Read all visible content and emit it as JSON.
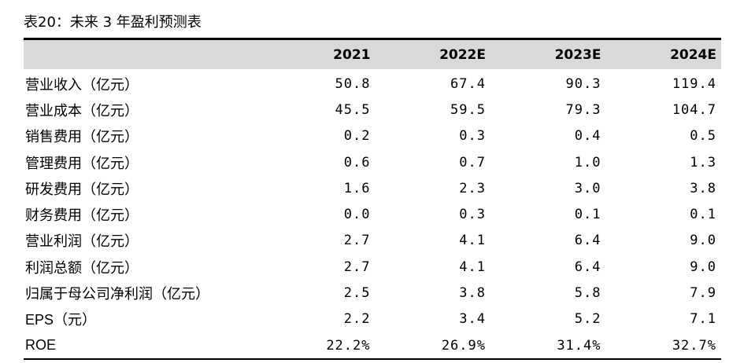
{
  "title": "表20：未来 3 年盈利预测表",
  "header": {
    "label": "",
    "years": [
      "2021",
      "2022E",
      "2023E",
      "2024E"
    ]
  },
  "rows": [
    {
      "label": "营业收入（亿元）",
      "values": [
        "50.8",
        "67.4",
        "90.3",
        "119.4"
      ]
    },
    {
      "label": "营业成本（亿元）",
      "values": [
        "45.5",
        "59.5",
        "79.3",
        "104.7"
      ]
    },
    {
      "label": "销售费用（亿元）",
      "values": [
        "0.2",
        "0.3",
        "0.4",
        "0.5"
      ]
    },
    {
      "label": "管理费用（亿元）",
      "values": [
        "0.6",
        "0.7",
        "1.0",
        "1.3"
      ]
    },
    {
      "label": "研发费用（亿元）",
      "values": [
        "1.6",
        "2.3",
        "3.0",
        "3.8"
      ]
    },
    {
      "label": "财务费用（亿元）",
      "values": [
        "0.0",
        "0.3",
        "0.1",
        "0.1"
      ]
    },
    {
      "label": "营业利润（亿元）",
      "values": [
        "2.7",
        "4.1",
        "6.4",
        "9.0"
      ]
    },
    {
      "label": "利润总额（亿元）",
      "values": [
        "2.7",
        "4.1",
        "6.4",
        "9.0"
      ]
    },
    {
      "label": "归属于母公司净利润（亿元）",
      "values": [
        "2.5",
        "3.8",
        "5.8",
        "7.9"
      ]
    },
    {
      "label": "EPS（元）",
      "values": [
        "2.2",
        "3.4",
        "5.2",
        "7.1"
      ]
    },
    {
      "label": "ROE",
      "values": [
        "22.2%",
        "26.9%",
        "31.4%",
        "32.7%"
      ]
    }
  ]
}
